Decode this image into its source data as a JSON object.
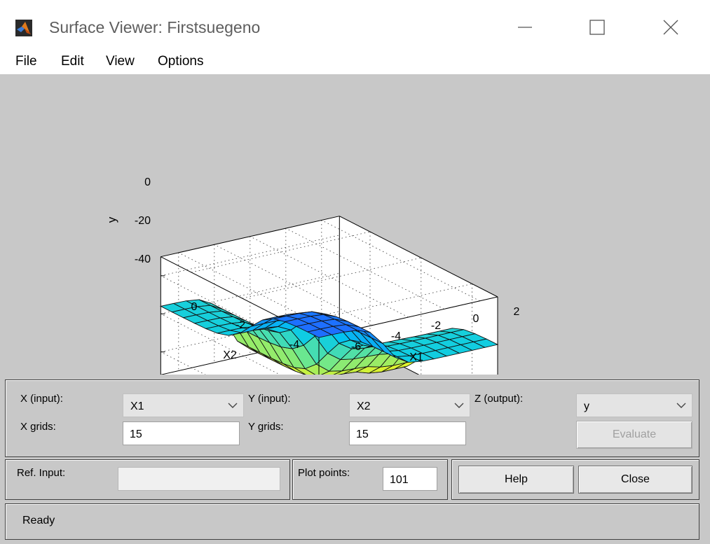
{
  "window": {
    "title": "Surface Viewer: Firstsuegeno"
  },
  "menu": {
    "items": [
      "File",
      "Edit",
      "View",
      "Options"
    ]
  },
  "plot": {
    "zlabel": "y",
    "xlabel": "X1",
    "ylabel": "X2",
    "z_ticks": [
      "0",
      "-20",
      "-40"
    ],
    "x1_ticks": [
      "-6",
      "-4",
      "-2",
      "0",
      "2"
    ],
    "x2_ticks": [
      "0",
      "-2",
      "-4"
    ]
  },
  "controls": {
    "x_input_label": "X (input):",
    "x_input_value": "X1",
    "y_input_label": "Y (input):",
    "y_input_value": "X2",
    "z_output_label": "Z (output):",
    "z_output_value": "y",
    "x_grids_label": "X grids:",
    "x_grids_value": "15",
    "y_grids_label": "Y grids:",
    "y_grids_value": "15",
    "evaluate_label": "Evaluate",
    "ref_input_label": "Ref. Input:",
    "ref_input_value": "",
    "plot_points_label": "Plot points:",
    "plot_points_value": "101",
    "help_label": "Help",
    "close_label": "Close"
  },
  "status": {
    "text": "Ready"
  },
  "colors": {
    "panel_bg": "#c8c8c8",
    "surface_low": "#1f6fff",
    "surface_high": "#f5f51a"
  },
  "icons": [
    "matlab-logo-icon",
    "minimize-icon",
    "maximize-icon",
    "close-icon",
    "chevron-down-icon"
  ]
}
